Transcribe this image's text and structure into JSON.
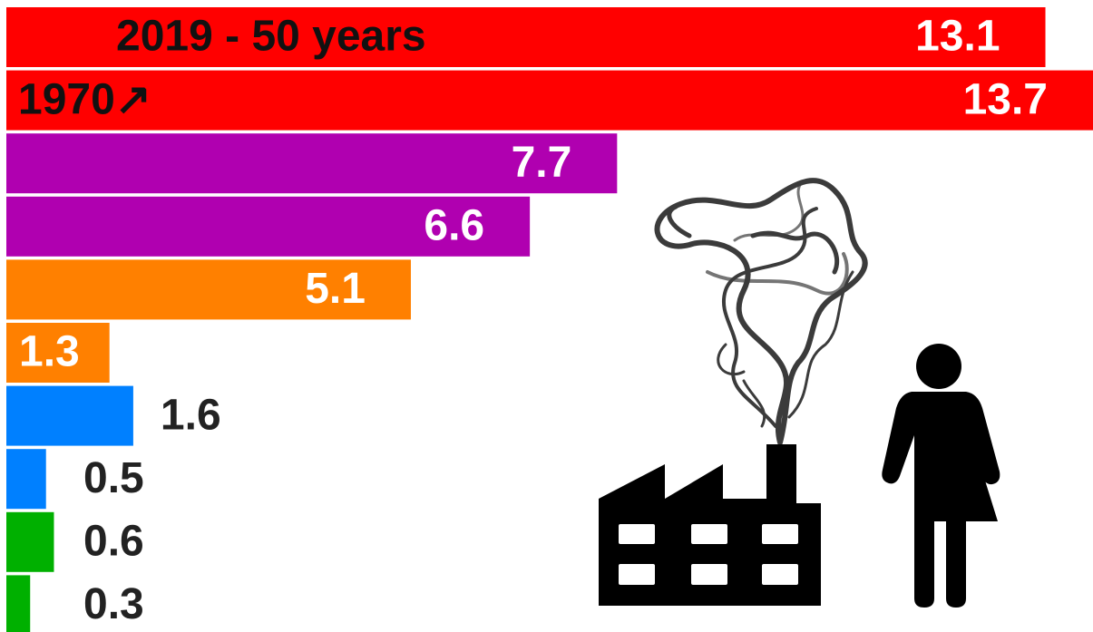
{
  "chart_data": {
    "type": "bar",
    "orientation": "horizontal",
    "values": [
      13.1,
      13.7,
      7.7,
      6.6,
      5.1,
      1.3,
      1.6,
      0.5,
      0.6,
      0.3
    ],
    "colors": [
      "#ff0000",
      "#ff0000",
      "#b000b0",
      "#b000b0",
      "#ff8000",
      "#ff8000",
      "#0080ff",
      "#0080ff",
      "#00b000",
      "#00b000"
    ],
    "label_colors": [
      "#ffffff",
      "#ffffff",
      "#ffffff",
      "#ffffff",
      "#ffffff",
      "#ffffff",
      "#222222",
      "#222222",
      "#222222",
      "#222222"
    ],
    "annotations": [
      "2019 - 50 years",
      "1970↗"
    ],
    "annotation_color": "#111111"
  }
}
